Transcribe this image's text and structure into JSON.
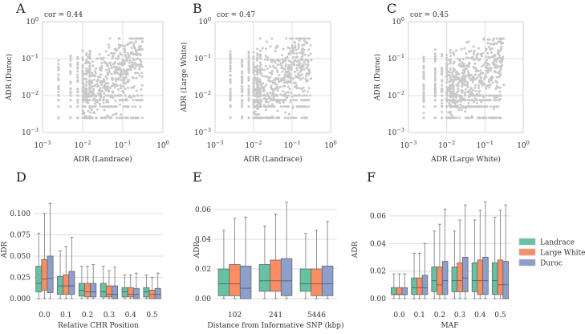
{
  "colors": {
    "Landrace": "#66c2a5",
    "Large White": "#fc8d62",
    "Duroc": "#8da0cb",
    "points": "#c8c8c8",
    "grid": "#dcdcdc"
  },
  "chart_data": [
    {
      "panel": "A",
      "type": "scatter",
      "annotation": "cor = 0.44",
      "correlation": 0.44,
      "xlabel": "ADR (Landrace)",
      "ylabel": "ADR (Duroc)",
      "xscale": "log",
      "yscale": "log",
      "xlim": [
        0.001,
        1
      ],
      "ylim": [
        0.001,
        1
      ],
      "xticks": [
        "10^-3",
        "10^-2",
        "10^-1",
        "10^0"
      ],
      "yticks": [
        "10^-3",
        "10^-2",
        "10^-1",
        "10^0"
      ],
      "grid": true
    },
    {
      "panel": "B",
      "type": "scatter",
      "annotation": "cor = 0.47",
      "correlation": 0.47,
      "xlabel": "ADR (Landrace)",
      "ylabel": "ADR (Large White)",
      "xscale": "log",
      "yscale": "log",
      "xlim": [
        0.001,
        1
      ],
      "ylim": [
        0.001,
        1
      ],
      "xticks": [
        "10^-3",
        "10^-2",
        "10^-1",
        "10^0"
      ],
      "yticks": [
        "10^-3",
        "10^-2",
        "10^-1",
        "10^0"
      ],
      "grid": true
    },
    {
      "panel": "C",
      "type": "scatter",
      "annotation": "cor = 0.45",
      "correlation": 0.45,
      "xlabel": "ADR (Large White)",
      "ylabel": "ADR (Duroc)",
      "xscale": "log",
      "yscale": "log",
      "xlim": [
        0.001,
        1
      ],
      "ylim": [
        0.001,
        1
      ],
      "xticks": [
        "10^-3",
        "10^-2",
        "10^-1",
        "10^0"
      ],
      "yticks": [
        "10^-3",
        "10^-2",
        "10^-1",
        "10^0"
      ],
      "grid": true
    },
    {
      "panel": "D",
      "type": "box",
      "xlabel": "Relative CHR Position",
      "ylabel": "ADR",
      "ylim": [
        0,
        0.115
      ],
      "yticks": [
        0,
        0.025,
        0.05,
        0.075,
        0.1
      ],
      "ytick_labels": [
        "0.000",
        "0.025",
        "0.050",
        "0.075",
        "0.100"
      ],
      "categories": [
        "0.0",
        "0.1",
        "0.2",
        "0.3",
        "0.4",
        "0.5"
      ],
      "series": [
        {
          "name": "Landrace",
          "boxes": [
            [
              0,
              0.008,
              0.018,
              0.038,
              0.077
            ],
            [
              0,
              0.005,
              0.015,
              0.026,
              0.056
            ],
            [
              0,
              0.003,
              0.01,
              0.018,
              0.038
            ],
            [
              0,
              0.002,
              0.008,
              0.018,
              0.038
            ],
            [
              0,
              0.002,
              0.008,
              0.013,
              0.028
            ],
            [
              0,
              0.002,
              0.008,
              0.013,
              0.028
            ]
          ]
        },
        {
          "name": "Large White",
          "boxes": [
            [
              0,
              0.01,
              0.023,
              0.046,
              0.1
            ],
            [
              0,
              0.005,
              0.015,
              0.028,
              0.061
            ],
            [
              0,
              0.002,
              0.008,
              0.018,
              0.038
            ],
            [
              0,
              0.002,
              0.005,
              0.015,
              0.033
            ],
            [
              0,
              0.002,
              0.005,
              0.013,
              0.028
            ],
            [
              0,
              0,
              0.005,
              0.01,
              0.025
            ]
          ]
        },
        {
          "name": "Duroc",
          "boxes": [
            [
              0,
              0.007,
              0.024,
              0.05,
              0.112
            ],
            [
              0,
              0.005,
              0.015,
              0.032,
              0.072
            ],
            [
              0,
              0.002,
              0.008,
              0.018,
              0.04
            ],
            [
              0,
              0,
              0.005,
              0.015,
              0.037
            ],
            [
              0,
              0,
              0.005,
              0.012,
              0.03
            ],
            [
              0,
              0,
              0.005,
              0.012,
              0.03
            ]
          ]
        }
      ]
    },
    {
      "panel": "E",
      "type": "box",
      "xlabel": "Distance from Informative SNP (kbp)",
      "ylabel": "ADR",
      "ylim": [
        0,
        0.066
      ],
      "yticks": [
        0,
        0.02,
        0.04,
        0.06
      ],
      "ytick_labels": [
        "0.00",
        "0.02",
        "0.04",
        "0.06"
      ],
      "categories": [
        "102",
        "241",
        "5446"
      ],
      "series": [
        {
          "name": "Landrace",
          "boxes": [
            [
              0,
              0.002,
              0.01,
              0.02,
              0.046
            ],
            [
              0,
              0.005,
              0.012,
              0.023,
              0.049
            ],
            [
              0,
              0.005,
              0.01,
              0.02,
              0.044
            ]
          ]
        },
        {
          "name": "Large White",
          "boxes": [
            [
              0,
              0.002,
              0.01,
              0.023,
              0.054
            ],
            [
              0,
              0.005,
              0.012,
              0.026,
              0.057
            ],
            [
              0,
              0.002,
              0.01,
              0.02,
              0.046
            ]
          ]
        },
        {
          "name": "Duroc",
          "boxes": [
            [
              0,
              0,
              0.007,
              0.022,
              0.055
            ],
            [
              0,
              0.002,
              0.012,
              0.027,
              0.065
            ],
            [
              0,
              0.002,
              0.01,
              0.022,
              0.052
            ]
          ]
        }
      ]
    },
    {
      "panel": "F",
      "type": "box",
      "xlabel": "MAF",
      "ylabel": "ADR",
      "ylim": [
        0,
        0.071
      ],
      "yticks": [
        0,
        0.02,
        0.04,
        0.06
      ],
      "ytick_labels": [
        "0.00",
        "0.02",
        "0.04",
        "0.06"
      ],
      "categories": [
        "0.0",
        "0.1",
        "0.2",
        "0.3",
        "0.4",
        "0.5"
      ],
      "series": [
        {
          "name": "Landrace",
          "boxes": [
            [
              0,
              0.003,
              0.003,
              0.008,
              0.018
            ],
            [
              0,
              0.003,
              0.008,
              0.015,
              0.033
            ],
            [
              0,
              0.005,
              0.013,
              0.023,
              0.049
            ],
            [
              0,
              0.005,
              0.013,
              0.023,
              0.049
            ],
            [
              0,
              0.005,
              0.013,
              0.026,
              0.057
            ],
            [
              0,
              0.003,
              0.013,
              0.026,
              0.059
            ]
          ]
        },
        {
          "name": "Large White",
          "boxes": [
            [
              0,
              0.003,
              0.003,
              0.008,
              0.018
            ],
            [
              0,
              0.003,
              0.008,
              0.015,
              0.033
            ],
            [
              0,
              0.003,
              0.01,
              0.023,
              0.054
            ],
            [
              0,
              0.005,
              0.013,
              0.026,
              0.057
            ],
            [
              0,
              0.003,
              0.013,
              0.028,
              0.064
            ],
            [
              0,
              0.003,
              0.01,
              0.028,
              0.064
            ]
          ]
        },
        {
          "name": "Duroc",
          "boxes": [
            [
              0,
              0.003,
              0.003,
              0.008,
              0.018
            ],
            [
              0,
              0.003,
              0.008,
              0.017,
              0.04
            ],
            [
              0,
              0.003,
              0.013,
              0.027,
              0.065
            ],
            [
              0,
              0.005,
              0.015,
              0.03,
              0.068
            ],
            [
              0,
              0.003,
              0.013,
              0.03,
              0.07
            ],
            [
              0,
              0,
              0.01,
              0.027,
              0.068
            ]
          ]
        }
      ]
    }
  ],
  "legend": {
    "placement": "right",
    "items": [
      "Landrace",
      "Large White",
      "Duroc"
    ]
  }
}
